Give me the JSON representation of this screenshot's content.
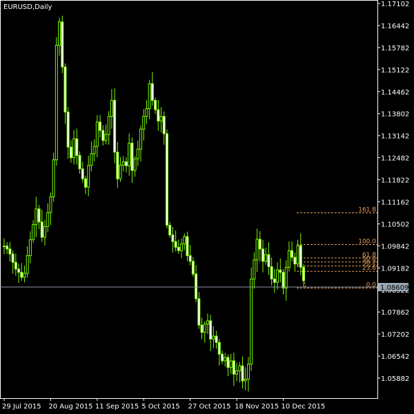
{
  "chart_data": {
    "type": "line",
    "title": "EURUSD,Daily",
    "y_ticks": [
      "1.17102",
      "1.16442",
      "1.15782",
      "1.15122",
      "1.14462",
      "1.13802",
      "1.13142",
      "1.12482",
      "1.11822",
      "1.11162",
      "1.10502",
      "1.09842",
      "1.09182",
      "1.08522",
      "1.07862",
      "1.07202",
      "1.06542",
      "1.05882"
    ],
    "x_ticks": [
      {
        "label": "29 Jul 2015",
        "index": 0
      },
      {
        "label": "20 Aug 2015",
        "index": 16
      },
      {
        "label": "11 Sep 2015",
        "index": 32
      },
      {
        "label": "5 Oct 2015",
        "index": 48
      },
      {
        "label": "27 Oct 2015",
        "index": 64
      },
      {
        "label": "18 Nov 2015",
        "index": 80
      },
      {
        "label": "10 Dec 2015",
        "index": 96
      }
    ],
    "ylim": [
      1.0549,
      1.171
    ],
    "current_price": "1.08609",
    "current_price_value": 1.08609,
    "fibonacci": {
      "levels": [
        {
          "label": "161.8",
          "value": 1.1083
        },
        {
          "label": "100.0",
          "value": 1.0988
        },
        {
          "label": "61.8",
          "value": 1.0948
        },
        {
          "label": "50.0",
          "value": 1.0936
        },
        {
          "label": "38.2",
          "value": 1.0924
        },
        {
          "label": "23.6",
          "value": 1.0908
        },
        {
          "label": "0.0",
          "value": 1.0858
        }
      ]
    },
    "series": [
      {
        "values": [
          1.0984,
          1.0975,
          1.096,
          1.0935,
          1.0915,
          1.0905,
          1.089,
          1.0902,
          1.0955,
          1.1003,
          1.1048,
          1.1095,
          1.1056,
          1.101,
          1.1042,
          1.1084,
          1.1131,
          1.1242,
          1.1585,
          1.1655,
          1.152,
          1.1385,
          1.128,
          1.1248,
          1.1305,
          1.1255,
          1.1215,
          1.1185,
          1.116,
          1.1225,
          1.126,
          1.1282,
          1.1355,
          1.133,
          1.13,
          1.1318,
          1.1372,
          1.142,
          1.1265,
          1.1185,
          1.1226,
          1.1236,
          1.1224,
          1.1292,
          1.121,
          1.1245,
          1.1274,
          1.1334,
          1.1372,
          1.1395,
          1.147,
          1.142,
          1.1392,
          1.1358,
          1.1372,
          1.132,
          1.1046,
          1.1017,
          1.0997,
          1.098,
          1.097,
          1.099,
          1.1012,
          1.0955,
          1.0938,
          1.09,
          1.0826,
          1.0747,
          1.0725,
          1.075,
          1.076,
          1.0705,
          1.0714,
          1.0695,
          1.066,
          1.064,
          1.065,
          1.062,
          1.064,
          1.06,
          1.061,
          1.0625,
          1.058,
          1.0585,
          1.063,
          1.0885,
          1.0942,
          1.1004,
          1.0975,
          1.0938,
          1.0958,
          1.0922,
          1.0885,
          1.0875,
          1.0912,
          1.0905,
          1.0858,
          1.092,
          1.097,
          1.095,
          1.093,
          1.0985,
          1.092,
          1.088
        ]
      }
    ]
  }
}
